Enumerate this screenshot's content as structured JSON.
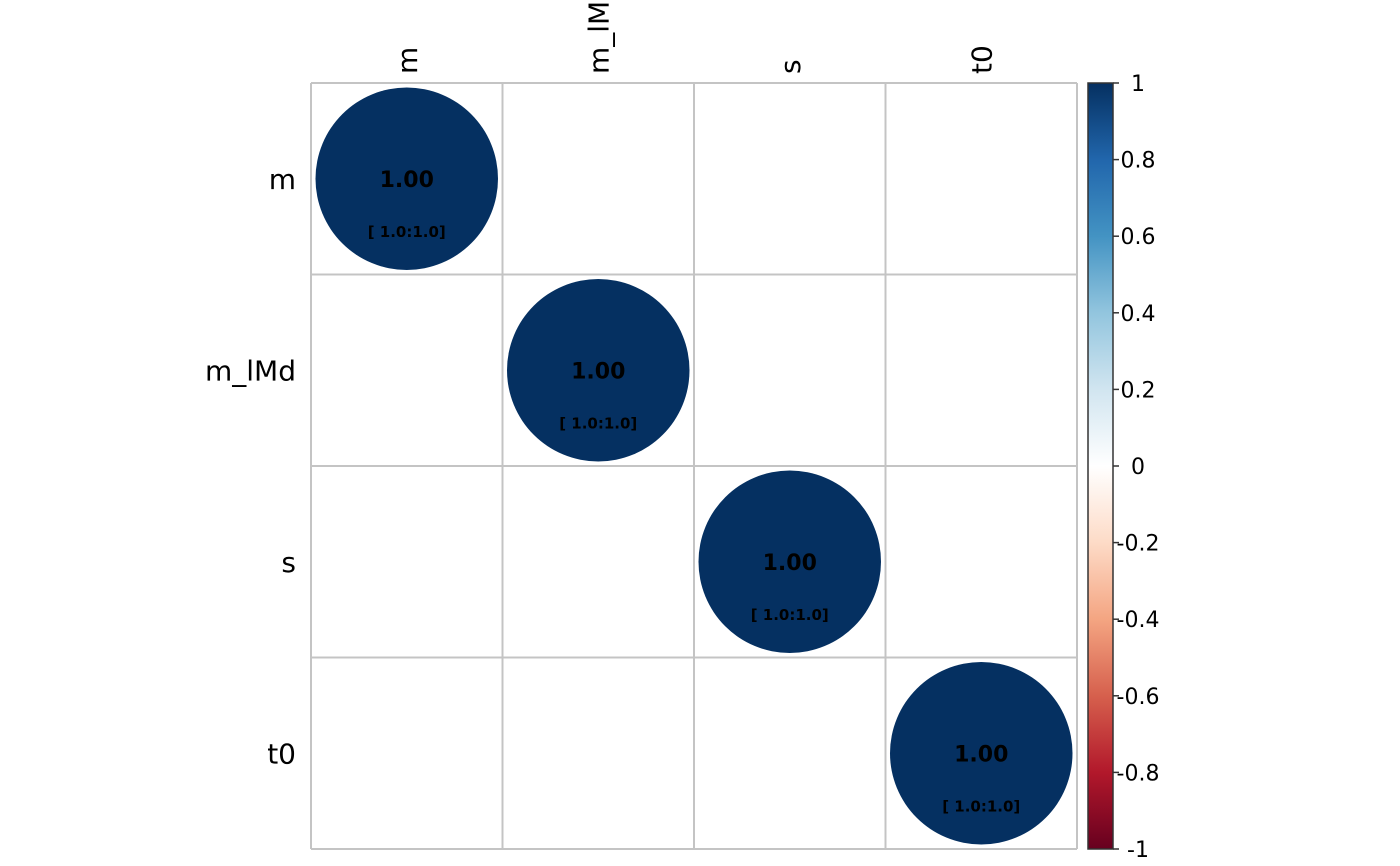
{
  "chart_data": {
    "type": "heatmap",
    "variables": [
      "m",
      "m_lMd",
      "s",
      "t0"
    ],
    "matrix": [
      [
        1.0,
        null,
        null,
        null
      ],
      [
        null,
        1.0,
        null,
        null
      ],
      [
        null,
        null,
        1.0,
        null
      ],
      [
        null,
        null,
        null,
        1.0
      ]
    ],
    "ci_labels": [
      [
        "[ 1.0:1.0]",
        null,
        null,
        null
      ],
      [
        null,
        "[ 1.0:1.0]",
        null,
        null
      ],
      [
        null,
        null,
        "[ 1.0:1.0]",
        null
      ],
      [
        null,
        null,
        null,
        "[ 1.0:1.0]"
      ]
    ],
    "value_labels": [
      [
        "1.00",
        null,
        null,
        null
      ],
      [
        null,
        "1.00",
        null,
        null
      ],
      [
        null,
        null,
        "1.00",
        null
      ],
      [
        null,
        null,
        null,
        "1.00"
      ]
    ],
    "colorbar": {
      "range": [
        -1,
        1
      ],
      "ticks": [
        "1",
        "0.8",
        "0.6",
        "0.4",
        "0.2",
        "0",
        "-0.2",
        "-0.4",
        "-0.6",
        "-0.8",
        "-1"
      ],
      "colors": [
        "#67001F",
        "#B2182B",
        "#D6604D",
        "#F4A582",
        "#FDDBC7",
        "#FFFFFF",
        "#D1E5F0",
        "#92C5DE",
        "#4393C3",
        "#2166AC",
        "#053061"
      ]
    },
    "grid": true,
    "legend": "right"
  }
}
